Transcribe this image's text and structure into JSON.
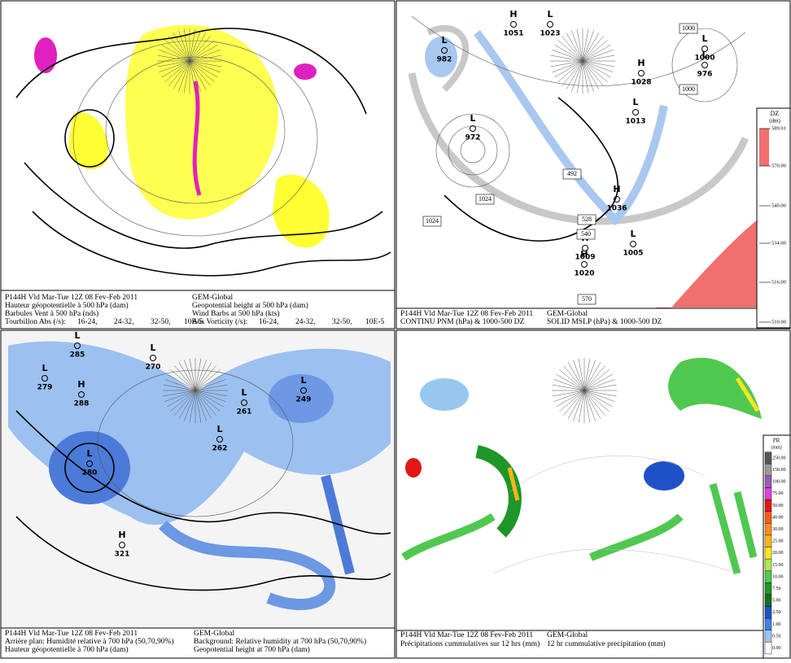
{
  "panels": [
    {
      "caption": {
        "left": [
          "P144H Vld Mar-Tue 12Z 08 Fev-Feb 2011",
          "Hauteur géopotentielle à 500 hPa (dam)",
          "Barbules Vent à 500 hPa (nds)",
          "Tourbillon Abs (/s):"
        ],
        "right": [
          "GEM-Global",
          "Geopotential height at 500 hPa (dam)",
          "Wind Barbs at 500 hPa (kts)",
          "Abs Vorticity (/s):"
        ],
        "legend": [
          "16-24,",
          "24-32,",
          "32-50,",
          "10E-5"
        ]
      }
    },
    {
      "caption": {
        "left": [
          "P144H Vld Mar-Tue 12Z 08 Fev-Feb 2011",
          "CONTINU PNM  (hPa) & 1000-500 DZ"
        ],
        "right": [
          "GEM-Global",
          "SOLID  MSLP (hPa) & 1000-500 DZ"
        ]
      },
      "colorbar": {
        "title": "DZ",
        "unit": "(dm)",
        "ticks": [
          "589.01",
          "570.00",
          "540.00",
          "534.00",
          "516.00",
          "510.00"
        ]
      },
      "centers": [
        {
          "type": "L",
          "value": "982"
        },
        {
          "type": "L",
          "value": "972"
        },
        {
          "type": "H",
          "value": "1051"
        },
        {
          "type": "L",
          "value": "1023"
        },
        {
          "type": "L",
          "value": "1000"
        },
        {
          "type": "L",
          "value": "976"
        },
        {
          "type": "H",
          "value": "1028"
        },
        {
          "type": "L",
          "value": "1013"
        },
        {
          "type": "H",
          "value": "1036"
        },
        {
          "type": "H",
          "value": "1009"
        },
        {
          "type": "L",
          "value": "1005"
        },
        {
          "type": "H",
          "value": "1020"
        }
      ],
      "labels": [
        "1024",
        "1024",
        "1000",
        "1000",
        "492",
        "528",
        "540",
        "570"
      ]
    },
    {
      "caption": {
        "left": [
          "P144H Vld Mar-Tue 12Z 08 Fev-Feb 2011",
          "Arrière plan: Humidité relative à 700 hPa (50,70,90%)",
          "Hauteur géopotentielle à 700 hPa (dam)"
        ],
        "right": [
          "GEM-Global",
          "Background: Relative humidity at 700 hPa (50,70,90%)",
          "Geopotential height at 700 hPa (dam)"
        ]
      },
      "centers": [
        {
          "type": "L",
          "value": "285"
        },
        {
          "type": "L",
          "value": "270"
        },
        {
          "type": "L",
          "value": "279"
        },
        {
          "type": "H",
          "value": "288"
        },
        {
          "type": "L",
          "value": "261"
        },
        {
          "type": "L",
          "value": "249"
        },
        {
          "type": "L",
          "value": "262"
        },
        {
          "type": "L",
          "value": "280"
        },
        {
          "type": "H",
          "value": "321"
        }
      ]
    },
    {
      "caption": {
        "left": [
          "P144H Vld Mar-Tue 12Z 08 Fev-Feb 2011",
          "Précipitations cummulatives sur 12 hrs (mm)"
        ],
        "right": [
          "GEM-Global",
          "12 hr cummulative precipitation   (mm)"
        ]
      },
      "colorbar": {
        "title": "PR",
        "unit": "(mm)",
        "ticks": [
          "250.00",
          "150.00",
          "100.00",
          "75.00",
          "50.00",
          "40.00",
          "30.00",
          "25.00",
          "20.00",
          "15.00",
          "10.00",
          "7.50",
          "5.00",
          "2.50",
          "1.00",
          "0.50",
          "0.00"
        ],
        "colors": [
          "#555555",
          "#999999",
          "#9b59b6",
          "#e040e0",
          "#e01818",
          "#ff5a1e",
          "#ff8c1e",
          "#ffb41e",
          "#ffe61e",
          "#b4e650",
          "#50c850",
          "#1e9628",
          "#146e1e",
          "#1e50c8",
          "#3c82e6",
          "#96c8f0",
          "#ffffff"
        ]
      }
    }
  ]
}
